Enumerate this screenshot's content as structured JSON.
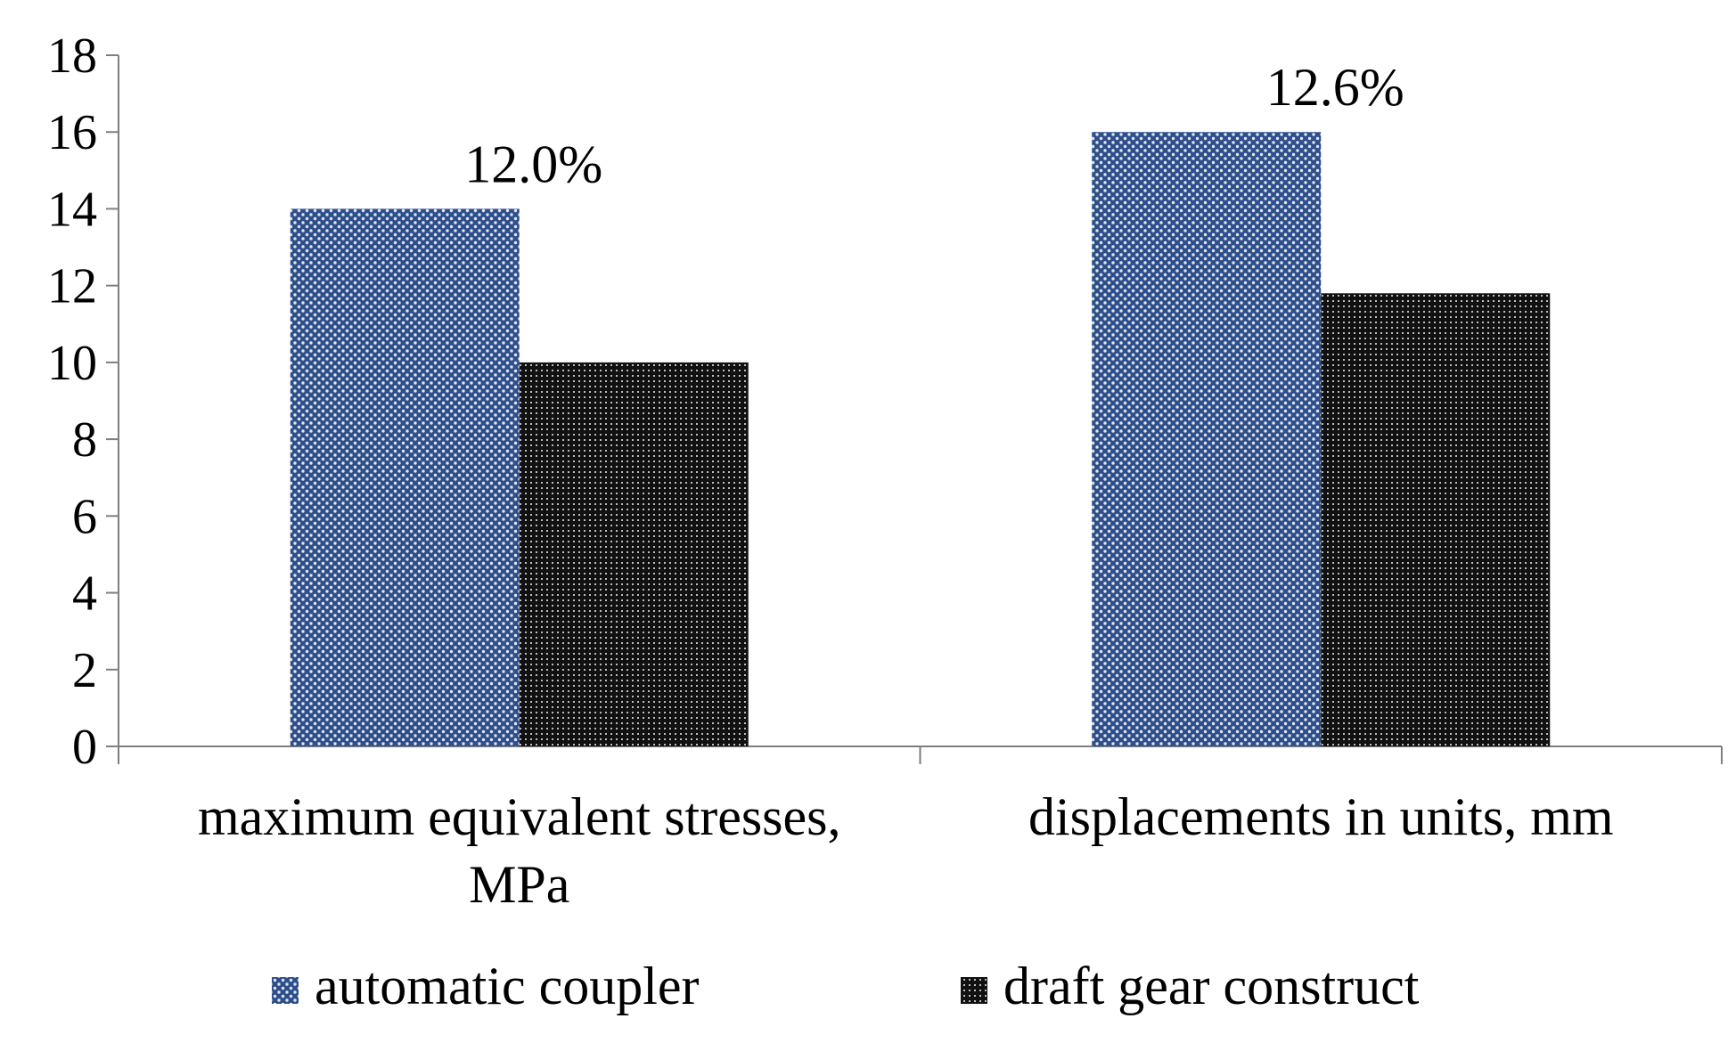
{
  "chart_data": {
    "type": "bar",
    "categories": [
      [
        "maximum equivalent stresses,",
        "MPa"
      ],
      [
        "displacements in units, mm"
      ]
    ],
    "series": [
      {
        "name": "automatic coupler",
        "values": [
          14,
          16
        ],
        "color": "#2f4f8a",
        "pattern": "blue-dots"
      },
      {
        "name": "draft gear construct",
        "values": [
          10,
          11.8
        ],
        "color": "#111111",
        "pattern": "black-grid"
      }
    ],
    "annotations": [
      {
        "category_index": 0,
        "text": "12.0%"
      },
      {
        "category_index": 1,
        "text": "12.6%"
      }
    ],
    "ylim": [
      0,
      18
    ],
    "y_ticks": [
      0,
      2,
      4,
      6,
      8,
      10,
      12,
      14,
      16,
      18
    ],
    "title": "",
    "xlabel": "",
    "ylabel": "",
    "grid": false,
    "legend_position": "bottom"
  }
}
